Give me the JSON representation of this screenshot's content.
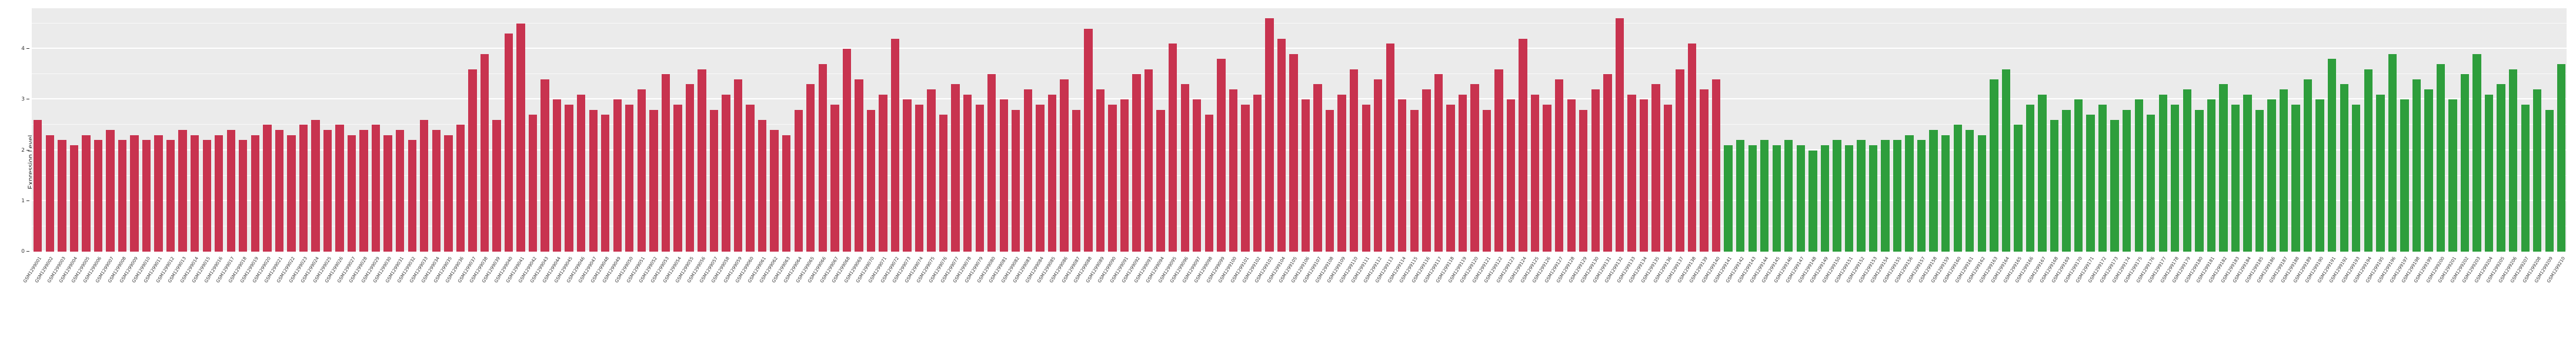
{
  "chart_data": {
    "type": "bar",
    "title": "",
    "ylabel": "Expression Level",
    "xlabel": "",
    "ylim": [
      0,
      4.8
    ],
    "yticks": [
      0,
      1,
      2,
      3,
      4
    ],
    "yticks_minor": [
      0.5,
      1.5,
      2.5,
      3.5,
      4.5
    ],
    "grid": "on",
    "legend": "none",
    "plot_background": "#ebebeb",
    "group_split": 140,
    "colors": {
      "group1": "#C8334F",
      "group2": "#2E9E3C"
    },
    "categories": [
      "GSM1299001",
      "GSM1299002",
      "GSM1299003",
      "GSM1299004",
      "GSM1299005",
      "GSM1299006",
      "GSM1299007",
      "GSM1299008",
      "GSM1299009",
      "GSM1299010",
      "GSM1299011",
      "GSM1299012",
      "GSM1299013",
      "GSM1299014",
      "GSM1299015",
      "GSM1299016",
      "GSM1299017",
      "GSM1299018",
      "GSM1299019",
      "GSM1299020",
      "GSM1299021",
      "GSM1299022",
      "GSM1299023",
      "GSM1299024",
      "GSM1299025",
      "GSM1299026",
      "GSM1299027",
      "GSM1299028",
      "GSM1299029",
      "GSM1299030",
      "GSM1299031",
      "GSM1299032",
      "GSM1299033",
      "GSM1299034",
      "GSM1299035",
      "GSM1299036",
      "GSM1299037",
      "GSM1299038",
      "GSM1299039",
      "GSM1299040",
      "GSM1299041",
      "GSM1299042",
      "GSM1299043",
      "GSM1299044",
      "GSM1299045",
      "GSM1299046",
      "GSM1299047",
      "GSM1299048",
      "GSM1299049",
      "GSM1299050",
      "GSM1299051",
      "GSM1299052",
      "GSM1299053",
      "GSM1299054",
      "GSM1299055",
      "GSM1299056",
      "GSM1299057",
      "GSM1299058",
      "GSM1299059",
      "GSM1299060",
      "GSM1299061",
      "GSM1299062",
      "GSM1299063",
      "GSM1299064",
      "GSM1299065",
      "GSM1299066",
      "GSM1299067",
      "GSM1299068",
      "GSM1299069",
      "GSM1299070",
      "GSM1299071",
      "GSM1299072",
      "GSM1299073",
      "GSM1299074",
      "GSM1299075",
      "GSM1299076",
      "GSM1299077",
      "GSM1299078",
      "GSM1299079",
      "GSM1299080",
      "GSM1299081",
      "GSM1299082",
      "GSM1299083",
      "GSM1299084",
      "GSM1299085",
      "GSM1299086",
      "GSM1299087",
      "GSM1299088",
      "GSM1299089",
      "GSM1299090",
      "GSM1299091",
      "GSM1299092",
      "GSM1299093",
      "GSM1299094",
      "GSM1299095",
      "GSM1299096",
      "GSM1299097",
      "GSM1299098",
      "GSM1299099",
      "GSM1299100",
      "GSM1299101",
      "GSM1299102",
      "GSM1299103",
      "GSM1299104",
      "GSM1299105",
      "GSM1299106",
      "GSM1299107",
      "GSM1299108",
      "GSM1299109",
      "GSM1299110",
      "GSM1299111",
      "GSM1299112",
      "GSM1299113",
      "GSM1299114",
      "GSM1299115",
      "GSM1299116",
      "GSM1299117",
      "GSM1299118",
      "GSM1299119",
      "GSM1299120",
      "GSM1299121",
      "GSM1299122",
      "GSM1299123",
      "GSM1299124",
      "GSM1299125",
      "GSM1299126",
      "GSM1299127",
      "GSM1299128",
      "GSM1299129",
      "GSM1299130",
      "GSM1299131",
      "GSM1299132",
      "GSM1299133",
      "GSM1299134",
      "GSM1299135",
      "GSM1299136",
      "GSM1299137",
      "GSM1299138",
      "GSM1299139",
      "GSM1299140",
      "GSM1299141",
      "GSM1299142",
      "GSM1299143",
      "GSM1299144",
      "GSM1299145",
      "GSM1299146",
      "GSM1299147",
      "GSM1299148",
      "GSM1299149",
      "GSM1299150",
      "GSM1299151",
      "GSM1299152",
      "GSM1299153",
      "GSM1299154",
      "GSM1299155",
      "GSM1299156",
      "GSM1299157",
      "GSM1299158",
      "GSM1299159",
      "GSM1299160",
      "GSM1299161",
      "GSM1299162",
      "GSM1299163",
      "GSM1299164",
      "GSM1299165",
      "GSM1299166",
      "GSM1299167",
      "GSM1299168",
      "GSM1299169",
      "GSM1299170",
      "GSM1299171",
      "GSM1299172",
      "GSM1299173",
      "GSM1299174",
      "GSM1299175",
      "GSM1299176",
      "GSM1299177",
      "GSM1299178",
      "GSM1299179",
      "GSM1299180",
      "GSM1299181",
      "GSM1299182",
      "GSM1299183",
      "GSM1299184",
      "GSM1299185",
      "GSM1299186",
      "GSM1299187",
      "GSM1299188",
      "GSM1299189",
      "GSM1299190",
      "GSM1299191",
      "GSM1299192",
      "GSM1299193",
      "GSM1299194",
      "GSM1299195",
      "GSM1299196",
      "GSM1299197",
      "GSM1299198",
      "GSM1299199",
      "GSM1299200",
      "GSM1299201",
      "GSM1299202",
      "GSM1299203",
      "GSM1299204",
      "GSM1299205",
      "GSM1299206",
      "GSM1299207",
      "GSM1299208",
      "GSM1299209",
      "GSM1299210"
    ],
    "values": [
      2.6,
      2.3,
      2.2,
      2.1,
      2.3,
      2.2,
      2.4,
      2.2,
      2.3,
      2.2,
      2.3,
      2.2,
      2.4,
      2.3,
      2.2,
      2.3,
      2.4,
      2.2,
      2.3,
      2.5,
      2.4,
      2.3,
      2.5,
      2.6,
      2.4,
      2.5,
      2.3,
      2.4,
      2.5,
      2.3,
      2.4,
      2.2,
      2.6,
      2.4,
      2.3,
      2.5,
      3.6,
      3.9,
      2.6,
      4.3,
      4.5,
      2.7,
      3.4,
      3.0,
      2.9,
      3.1,
      2.8,
      2.7,
      3.0,
      2.9,
      3.2,
      2.8,
      3.5,
      2.9,
      3.3,
      3.6,
      2.8,
      3.1,
      3.4,
      2.9,
      2.6,
      2.4,
      2.3,
      2.8,
      3.3,
      3.7,
      2.9,
      4.0,
      3.4,
      2.8,
      3.1,
      4.2,
      3.0,
      2.9,
      3.2,
      2.7,
      3.3,
      3.1,
      2.9,
      3.5,
      3.0,
      2.8,
      3.2,
      2.9,
      3.1,
      3.4,
      2.8,
      4.4,
      3.2,
      2.9,
      3.0,
      3.5,
      3.6,
      2.8,
      4.1,
      3.3,
      3.0,
      2.7,
      3.8,
      3.2,
      2.9,
      3.1,
      4.6,
      4.2,
      3.9,
      3.0,
      3.3,
      2.8,
      3.1,
      3.6,
      2.9,
      3.4,
      4.1,
      3.0,
      2.8,
      3.2,
      3.5,
      2.9,
      3.1,
      3.3,
      2.8,
      3.6,
      3.0,
      4.2,
      3.1,
      2.9,
      3.4,
      3.0,
      2.8,
      3.2,
      3.5,
      4.6,
      3.1,
      3.0,
      3.3,
      2.9,
      3.6,
      4.1,
      3.2,
      3.4,
      2.1,
      2.2,
      2.1,
      2.2,
      2.1,
      2.2,
      2.1,
      2.0,
      2.1,
      2.2,
      2.1,
      2.2,
      2.1,
      2.2,
      2.2,
      2.3,
      2.2,
      2.4,
      2.3,
      2.5,
      2.4,
      2.3,
      3.4,
      3.6,
      2.5,
      2.9,
      3.1,
      2.6,
      2.8,
      3.0,
      2.7,
      2.9,
      2.6,
      2.8,
      3.0,
      2.7,
      3.1,
      2.9,
      3.2,
      2.8,
      3.0,
      3.3,
      2.9,
      3.1,
      2.8,
      3.0,
      3.2,
      2.9,
      3.4,
      3.0,
      3.8,
      3.3,
      2.9,
      3.6,
      3.1,
      3.9,
      3.0,
      3.4,
      3.2,
      3.7,
      3.0,
      3.5,
      3.9,
      3.1,
      3.3,
      3.6,
      2.9,
      3.2,
      2.8,
      3.7
    ]
  }
}
